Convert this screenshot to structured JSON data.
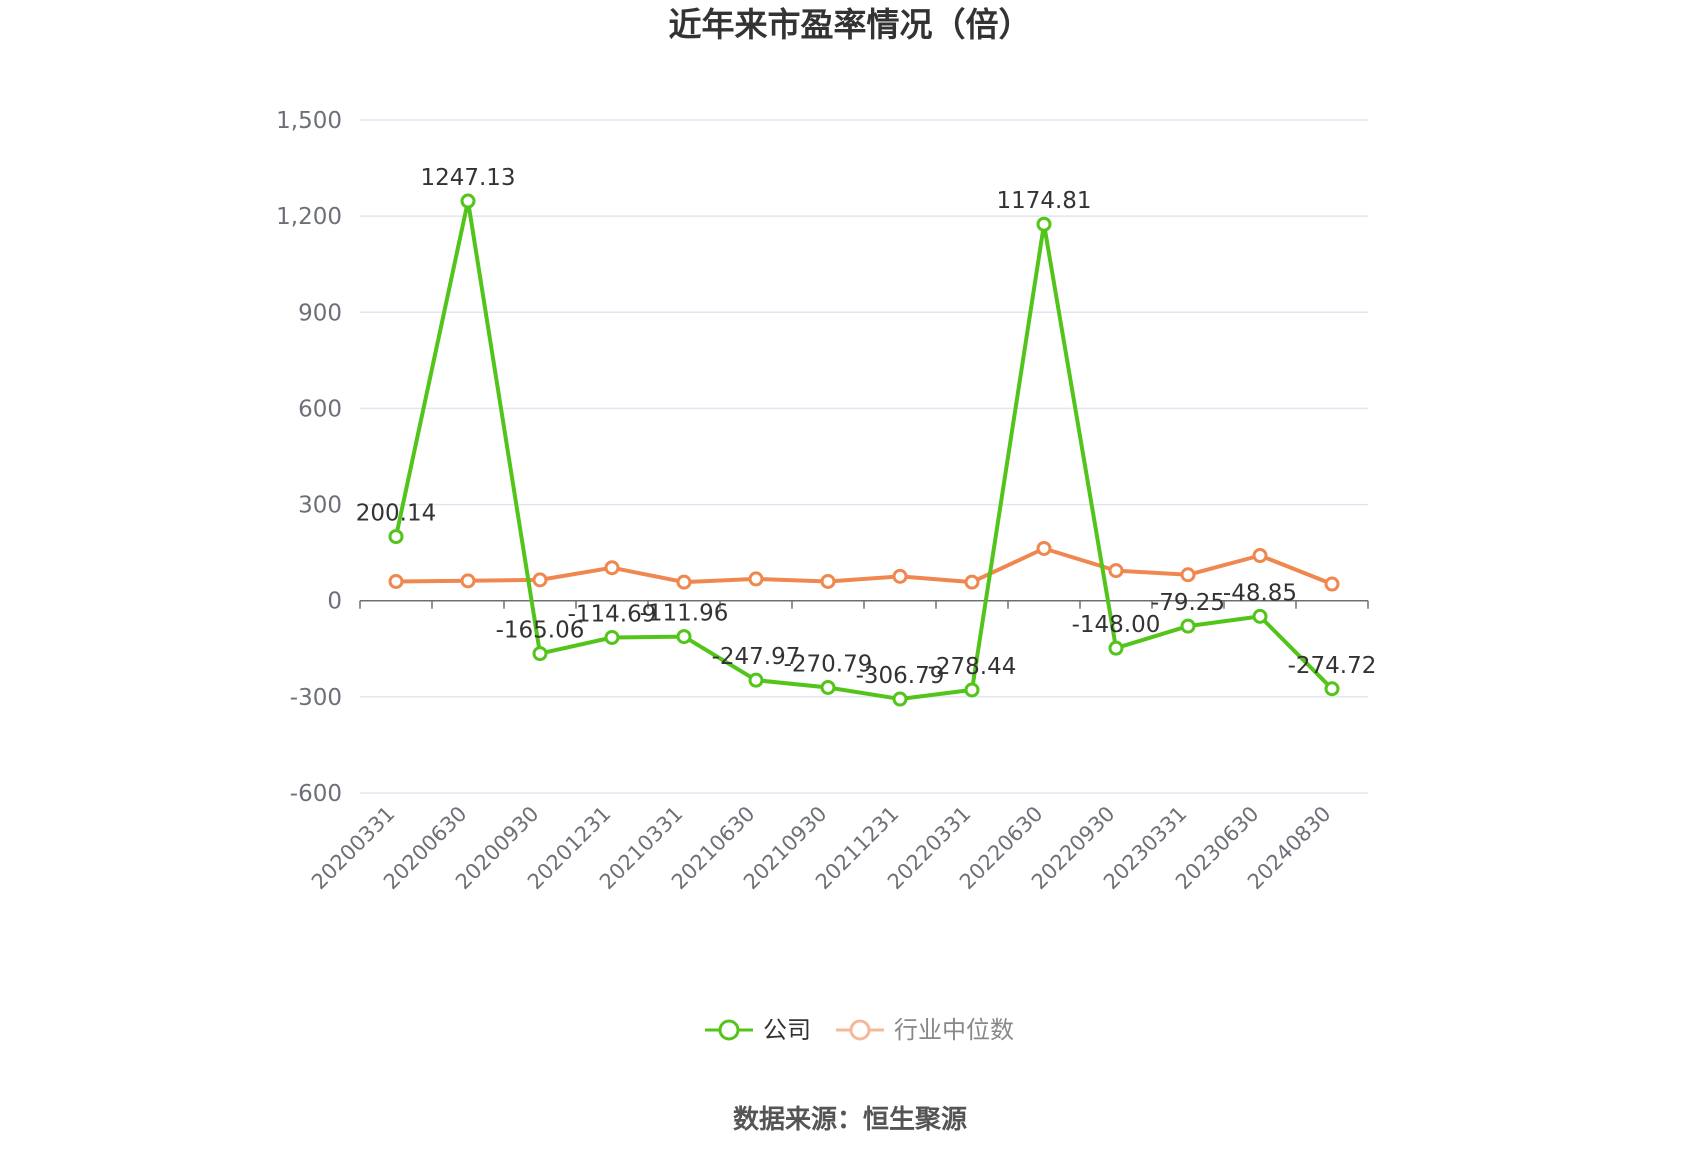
{
  "chart_data": {
    "type": "line",
    "title": "近年来市盈率情况（倍）",
    "categories": [
      "20200331",
      "20200630",
      "20200930",
      "20201231",
      "20210331",
      "20210630",
      "20210930",
      "20211231",
      "20220331",
      "20220630",
      "20220930",
      "20230331",
      "20230630",
      "20240830"
    ],
    "series": [
      {
        "name": "公司",
        "color": "#52c41a",
        "values": [
          200.14,
          1247.13,
          -165.06,
          -114.69,
          -111.96,
          -247.97,
          -270.79,
          -306.79,
          -278.44,
          1174.81,
          -148.0,
          -79.25,
          -48.85,
          -274.72
        ],
        "labels": [
          "200.14",
          "1247.13",
          "-165.06",
          "-114.69",
          "-111.96",
          "-247.97",
          "-270.79",
          "-306.79",
          "-278.44",
          "1174.81",
          "-148.00",
          "-79.25",
          "-48.85",
          "-274.72"
        ]
      },
      {
        "name": "行业中位数",
        "color": "#f0874f",
        "values": [
          60,
          62,
          65,
          103,
          58,
          68,
          60,
          76,
          58,
          163,
          94,
          81,
          141,
          52
        ]
      }
    ],
    "ylim": [
      -600,
      1500
    ],
    "yticks": [
      -600,
      -300,
      0,
      300,
      600,
      900,
      1200,
      1500
    ],
    "ytick_labels": [
      "-600",
      "-300",
      "0",
      "300",
      "600",
      "900",
      "1,200",
      "1,500"
    ],
    "grid": true,
    "legend_position": "bottom-center"
  },
  "source_text": "数据来源：恒生聚源"
}
